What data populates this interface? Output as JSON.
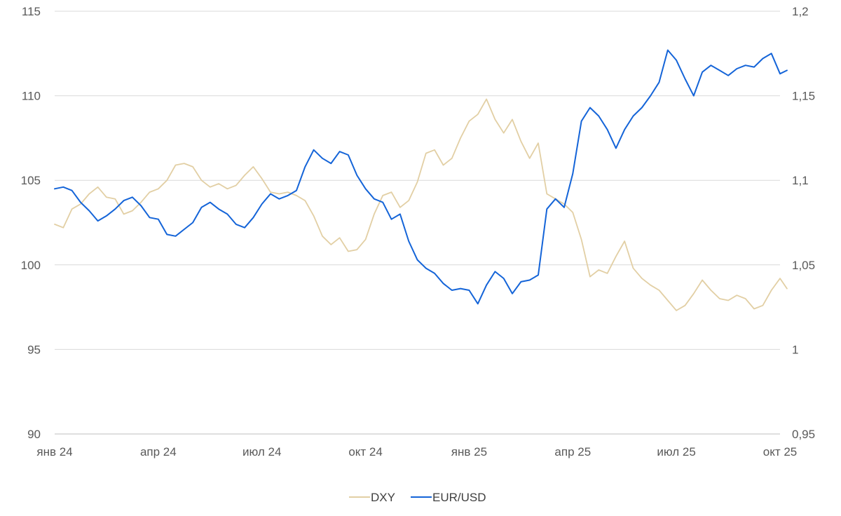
{
  "chart_data": {
    "type": "line",
    "title": "",
    "xlabel": "",
    "ylabel": "",
    "grid": true,
    "legend_position": "bottom-center",
    "x_ticks": [
      "янв 24",
      "апр 24",
      "июл 24",
      "окт 24",
      "янв 25",
      "апр 25",
      "июл 25",
      "окт 25"
    ],
    "x_tick_months": [
      0,
      3,
      6,
      9,
      12,
      15,
      18,
      21
    ],
    "xlim": [
      0,
      21
    ],
    "y_left": {
      "ylim": [
        90,
        115
      ],
      "ticks": [
        "90",
        "95",
        "100",
        "105",
        "110",
        "115"
      ],
      "tick_values": [
        90,
        95,
        100,
        105,
        110,
        115
      ]
    },
    "y_right": {
      "ylim": [
        0.95,
        1.2
      ],
      "ticks": [
        "0,95",
        "1",
        "1,05",
        "1,1",
        "1,15",
        "1,2"
      ],
      "tick_values": [
        0.95,
        1.0,
        1.05,
        1.1,
        1.15,
        1.2
      ]
    },
    "series": [
      {
        "name": "DXY",
        "axis": "left",
        "color": "#e2cfa4",
        "x": [
          0,
          0.25,
          0.5,
          0.75,
          1.0,
          1.25,
          1.5,
          1.75,
          2.0,
          2.25,
          2.5,
          2.75,
          3.0,
          3.25,
          3.5,
          3.75,
          4.0,
          4.25,
          4.5,
          4.75,
          5.0,
          5.25,
          5.5,
          5.75,
          6.0,
          6.25,
          6.5,
          6.75,
          7.0,
          7.25,
          7.5,
          7.75,
          8.0,
          8.25,
          8.5,
          8.75,
          9.0,
          9.25,
          9.5,
          9.75,
          10.0,
          10.25,
          10.5,
          10.75,
          11.0,
          11.25,
          11.5,
          11.75,
          12.0,
          12.25,
          12.5,
          12.75,
          13.0,
          13.25,
          13.5,
          13.75,
          14.0,
          14.25,
          14.5,
          14.75,
          15.0,
          15.25,
          15.5,
          15.75,
          16.0,
          16.25,
          16.5,
          16.75,
          17.0,
          17.25,
          17.5,
          17.75,
          18.0,
          18.25,
          18.5,
          18.75,
          19.0,
          19.25,
          19.5,
          19.75,
          20.0,
          20.25,
          20.5,
          20.75,
          21.0,
          21.2
        ],
        "values": [
          102.4,
          102.2,
          103.3,
          103.6,
          104.2,
          104.6,
          104.0,
          103.9,
          103.0,
          103.2,
          103.7,
          104.3,
          104.5,
          105.0,
          105.9,
          106.0,
          105.8,
          105.0,
          104.6,
          104.8,
          104.5,
          104.7,
          105.3,
          105.8,
          105.1,
          104.3,
          104.2,
          104.3,
          104.1,
          103.8,
          102.9,
          101.7,
          101.2,
          101.6,
          100.8,
          100.9,
          101.5,
          103.0,
          104.1,
          104.3,
          103.4,
          103.8,
          104.9,
          106.6,
          106.8,
          105.9,
          106.3,
          107.5,
          108.5,
          108.9,
          109.8,
          108.6,
          107.8,
          108.6,
          107.3,
          106.3,
          107.2,
          104.2,
          103.9,
          103.6,
          103.1,
          101.5,
          99.3,
          99.7,
          99.5,
          100.5,
          101.4,
          99.8,
          99.2,
          98.8,
          98.5,
          97.9,
          97.3,
          97.6,
          98.3,
          99.1,
          98.5,
          98.0,
          97.9,
          98.2,
          98.0,
          97.4,
          97.6,
          98.5,
          99.2,
          98.6
        ]
      },
      {
        "name": "EUR/USD",
        "axis": "right",
        "color": "#1464d8",
        "x": [
          0,
          0.25,
          0.5,
          0.75,
          1.0,
          1.25,
          1.5,
          1.75,
          2.0,
          2.25,
          2.5,
          2.75,
          3.0,
          3.25,
          3.5,
          3.75,
          4.0,
          4.25,
          4.5,
          4.75,
          5.0,
          5.25,
          5.5,
          5.75,
          6.0,
          6.25,
          6.5,
          6.75,
          7.0,
          7.25,
          7.5,
          7.75,
          8.0,
          8.25,
          8.5,
          8.75,
          9.0,
          9.25,
          9.5,
          9.75,
          10.0,
          10.25,
          10.5,
          10.75,
          11.0,
          11.25,
          11.5,
          11.75,
          12.0,
          12.25,
          12.5,
          12.75,
          13.0,
          13.25,
          13.5,
          13.75,
          14.0,
          14.25,
          14.5,
          14.75,
          15.0,
          15.25,
          15.5,
          15.75,
          16.0,
          16.25,
          16.5,
          16.75,
          17.0,
          17.25,
          17.5,
          17.75,
          18.0,
          18.25,
          18.5,
          18.75,
          19.0,
          19.25,
          19.5,
          19.75,
          20.0,
          20.25,
          20.5,
          20.75,
          21.0,
          21.2
        ],
        "values": [
          1.095,
          1.096,
          1.094,
          1.087,
          1.082,
          1.076,
          1.079,
          1.083,
          1.088,
          1.09,
          1.085,
          1.078,
          1.077,
          1.068,
          1.067,
          1.071,
          1.075,
          1.084,
          1.087,
          1.083,
          1.08,
          1.074,
          1.072,
          1.078,
          1.086,
          1.092,
          1.089,
          1.091,
          1.094,
          1.108,
          1.118,
          1.113,
          1.11,
          1.117,
          1.115,
          1.103,
          1.095,
          1.089,
          1.087,
          1.077,
          1.08,
          1.064,
          1.053,
          1.048,
          1.045,
          1.039,
          1.035,
          1.036,
          1.035,
          1.027,
          1.038,
          1.046,
          1.042,
          1.033,
          1.04,
          1.041,
          1.044,
          1.083,
          1.089,
          1.084,
          1.104,
          1.135,
          1.143,
          1.138,
          1.13,
          1.119,
          1.13,
          1.138,
          1.143,
          1.15,
          1.158,
          1.177,
          1.171,
          1.16,
          1.15,
          1.164,
          1.168,
          1.165,
          1.162,
          1.166,
          1.168,
          1.167,
          1.172,
          1.175,
          1.163,
          1.165
        ]
      }
    ]
  }
}
